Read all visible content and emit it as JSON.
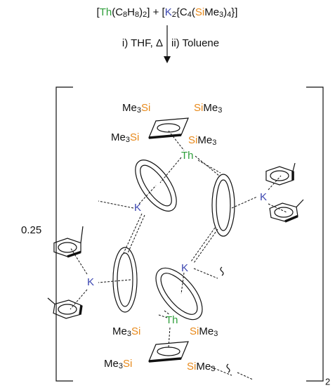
{
  "scheme": {
    "equation": "[Th(C8H8)2] + [K2{C4(SiMe3)4}]",
    "conditions": [
      "i) THF, Δ",
      "ii) Toluene"
    ],
    "element_colors": {
      "Th": "#2e9e3a",
      "K": "#3b46b0",
      "Si": "#e8891a"
    },
    "stoichiometry": "0.25",
    "bracket_subscript": "2",
    "labels": {
      "top_silyl": [
        "Me3Si",
        "SiMe3",
        "Me3Si",
        "SiMe3"
      ],
      "top_metal": "Th",
      "potassium": [
        "K",
        "K",
        "K",
        "K"
      ],
      "bottom_metal": "Th",
      "bottom_silyl": [
        "Me3Si",
        "SiMe3",
        "Me3Si",
        "SiMe3"
      ]
    }
  }
}
